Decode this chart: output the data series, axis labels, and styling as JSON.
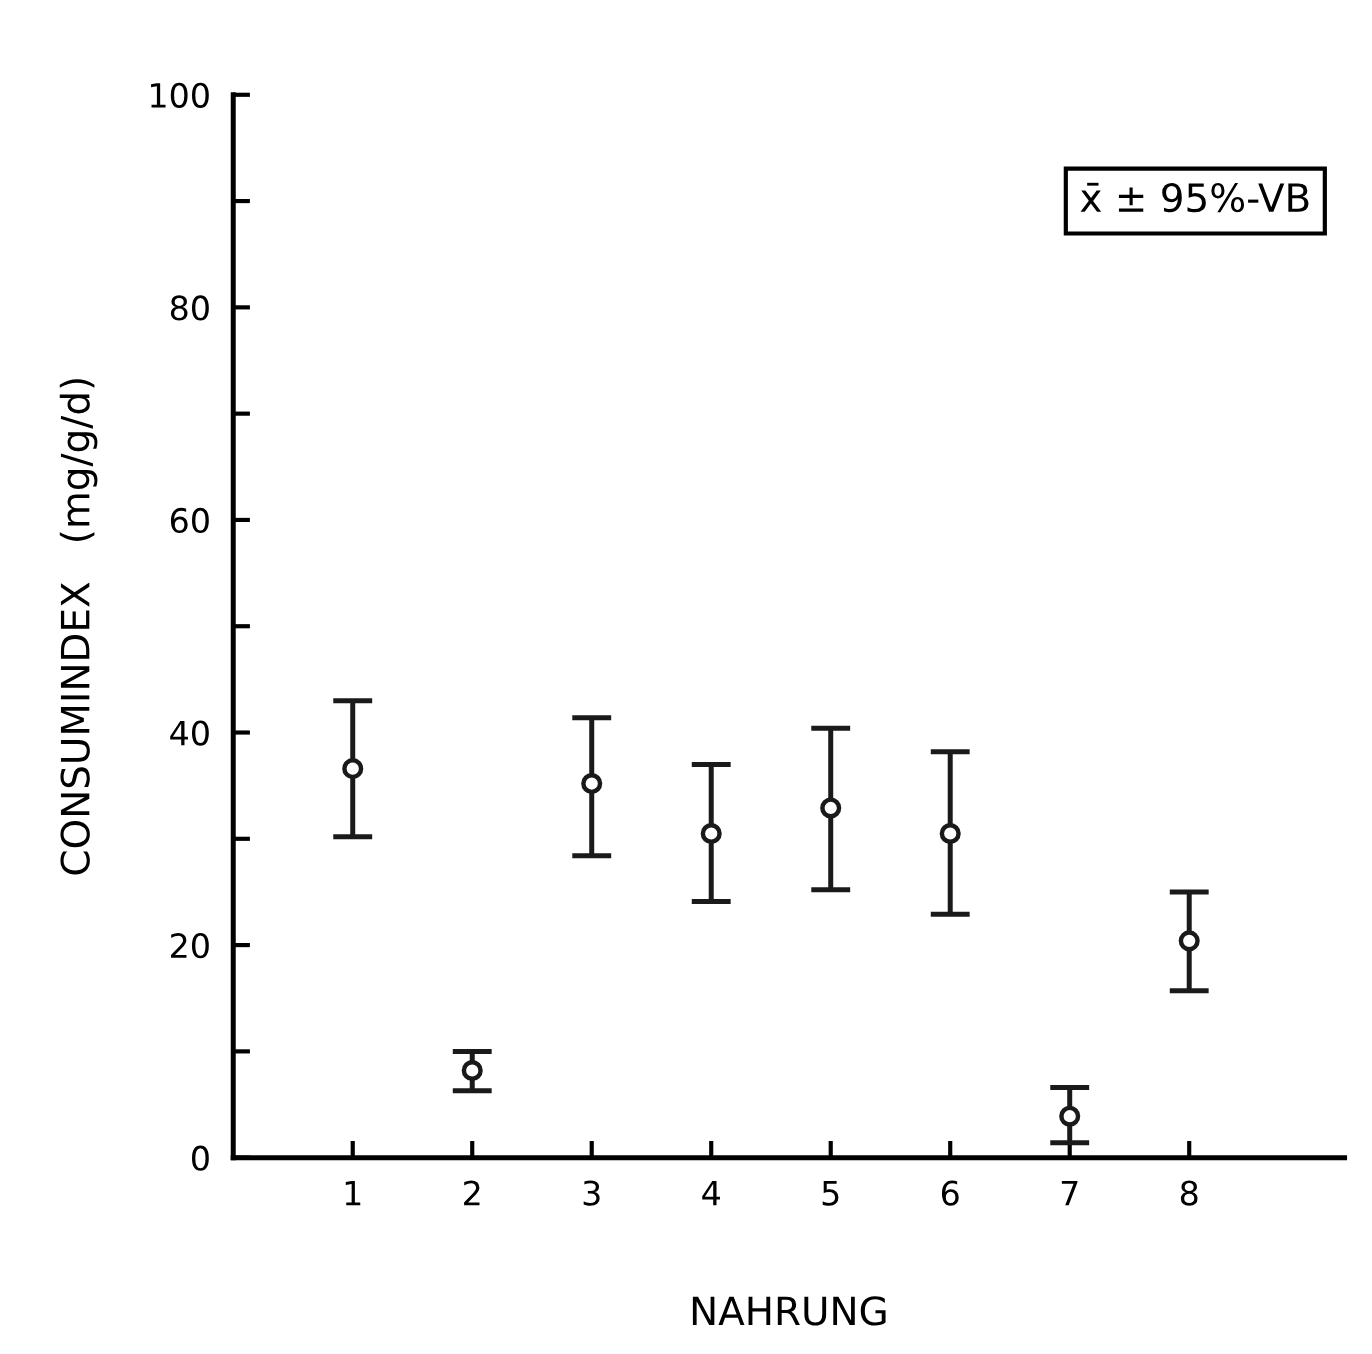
{
  "chart_data": {
    "type": "scatter",
    "xlabel": "NAHRUNG",
    "ylabel": "CONSUMINDEX   (mg/g/d)",
    "categories": [
      "1",
      "2",
      "3",
      "4",
      "5",
      "6",
      "7",
      "8"
    ],
    "values": [
      36.6,
      8.2,
      35.2,
      30.5,
      32.9,
      30.5,
      3.9,
      20.4
    ],
    "errors": [
      [
        30.2,
        43
      ],
      [
        6.3,
        10
      ],
      [
        28.4,
        41.4
      ],
      [
        24.1,
        37
      ],
      [
        25.2,
        40.4
      ],
      [
        22.9,
        38.2
      ],
      [
        1.4,
        6.6
      ],
      [
        15.7,
        25
      ]
    ],
    "color": "#1a1a1a",
    "marker": "circle",
    "ylim": [
      0,
      100
    ],
    "yticks": [
      0,
      {
        "value": 10,
        "label": null
      },
      20,
      {
        "value": 30,
        "label": null
      },
      40,
      {
        "value": 50,
        "label": null
      },
      60,
      {
        "value": 70,
        "label": null
      },
      80,
      {
        "value": 90,
        "label": null
      },
      100
    ],
    "annotations": [
      "x̄ ± 95%-VB"
    ]
  }
}
